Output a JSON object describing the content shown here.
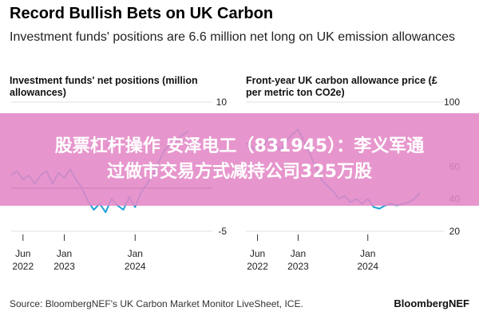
{
  "header": {
    "title": "Record Bullish Bets on UK Carbon",
    "subtitle": "Investment funds' positions are 6.6 million net long on UK emission allowances"
  },
  "overlay": {
    "line1": "股票杠杆操作 安泽电工（831945）：李义军通",
    "line2": "过做市交易方式减持公司325万股"
  },
  "footer": {
    "source": "Source: BloombergNEF's UK Carbon Market Monitor LiveSheet, ICE.",
    "brand": "BloombergNEF"
  },
  "colors": {
    "line": "#1fa2d8",
    "grid": "#d9d9d9",
    "zero": "#555555",
    "overlay": "#e488c6"
  },
  "chart_data": [
    {
      "type": "line",
      "title": "Investment funds' net positions (million allowances)",
      "y_axis_side": "right",
      "ylim": [
        -5,
        10
      ],
      "y_ticks": [
        10,
        5,
        0,
        -5
      ],
      "y_tick_labels": [
        "10",
        "",
        "",
        "-5"
      ],
      "x_tick_labels": [
        {
          "line1": "Jun",
          "line2": "2022"
        },
        {
          "line1": "Jan",
          "line2": "2023"
        },
        {
          "line1": "Jan",
          "line2": "2024"
        }
      ],
      "x_tick_dates": [
        "2022-06",
        "2023-01",
        "2024-01"
      ],
      "xlim": [
        "2022-04",
        "2025-01"
      ],
      "series": [
        {
          "x": [
            "2022-04",
            "2022-05",
            "2022-06",
            "2022-07",
            "2022-08",
            "2022-09",
            "2022-10",
            "2022-11",
            "2022-12",
            "2023-01",
            "2023-02",
            "2023-03",
            "2023-04",
            "2023-05",
            "2023-06",
            "2023-07",
            "2023-08",
            "2023-09",
            "2023-10",
            "2023-11",
            "2023-12",
            "2024-01",
            "2024-02",
            "2024-03",
            "2024-04",
            "2024-05",
            "2024-06",
            "2024-07",
            "2024-08",
            "2024-09",
            "2024-10"
          ],
          "values": [
            1.5,
            2.0,
            1.0,
            1.5,
            0.5,
            1.5,
            2.0,
            0.5,
            1.8,
            1.2,
            2.2,
            1.0,
            0.0,
            -1.5,
            -2.5,
            -1.8,
            -2.8,
            -1.2,
            -2.0,
            -2.5,
            -1.0,
            -2.2,
            -0.5,
            0.5,
            1.5,
            3.0,
            4.5,
            5.0,
            5.5,
            6.2,
            6.6
          ]
        }
      ]
    },
    {
      "type": "line",
      "title": "Front-year UK carbon allowance price (£ per metric ton CO2e)",
      "y_axis_side": "right",
      "ylim": [
        20,
        100
      ],
      "y_ticks": [
        100,
        80,
        60,
        40,
        20
      ],
      "y_tick_labels": [
        "100",
        "",
        "60",
        "40",
        "20"
      ],
      "x_tick_labels": [
        {
          "line1": "Jun",
          "line2": "2022"
        },
        {
          "line1": "Jan",
          "line2": "2023"
        },
        {
          "line1": "Jan",
          "line2": "2024"
        }
      ],
      "x_tick_dates": [
        "2022-06",
        "2023-01",
        "2024-01"
      ],
      "xlim": [
        "2022-04",
        "2025-01"
      ],
      "series": [
        {
          "x": [
            "2022-04",
            "2022-05",
            "2022-06",
            "2022-07",
            "2022-08",
            "2022-09",
            "2022-10",
            "2022-11",
            "2022-12",
            "2023-01",
            "2023-02",
            "2023-03",
            "2023-04",
            "2023-05",
            "2023-06",
            "2023-07",
            "2023-08",
            "2023-09",
            "2023-10",
            "2023-11",
            "2023-12",
            "2024-01",
            "2024-02",
            "2024-03",
            "2024-04",
            "2024-05",
            "2024-06",
            "2024-07",
            "2024-08",
            "2024-09",
            "2024-10"
          ],
          "values": [
            75,
            72,
            70,
            73,
            78,
            74,
            70,
            76,
            80,
            83,
            76,
            68,
            60,
            52,
            48,
            45,
            40,
            42,
            38,
            40,
            37,
            40,
            35,
            34,
            36,
            37,
            36,
            37,
            38,
            40,
            44
          ]
        }
      ]
    }
  ]
}
